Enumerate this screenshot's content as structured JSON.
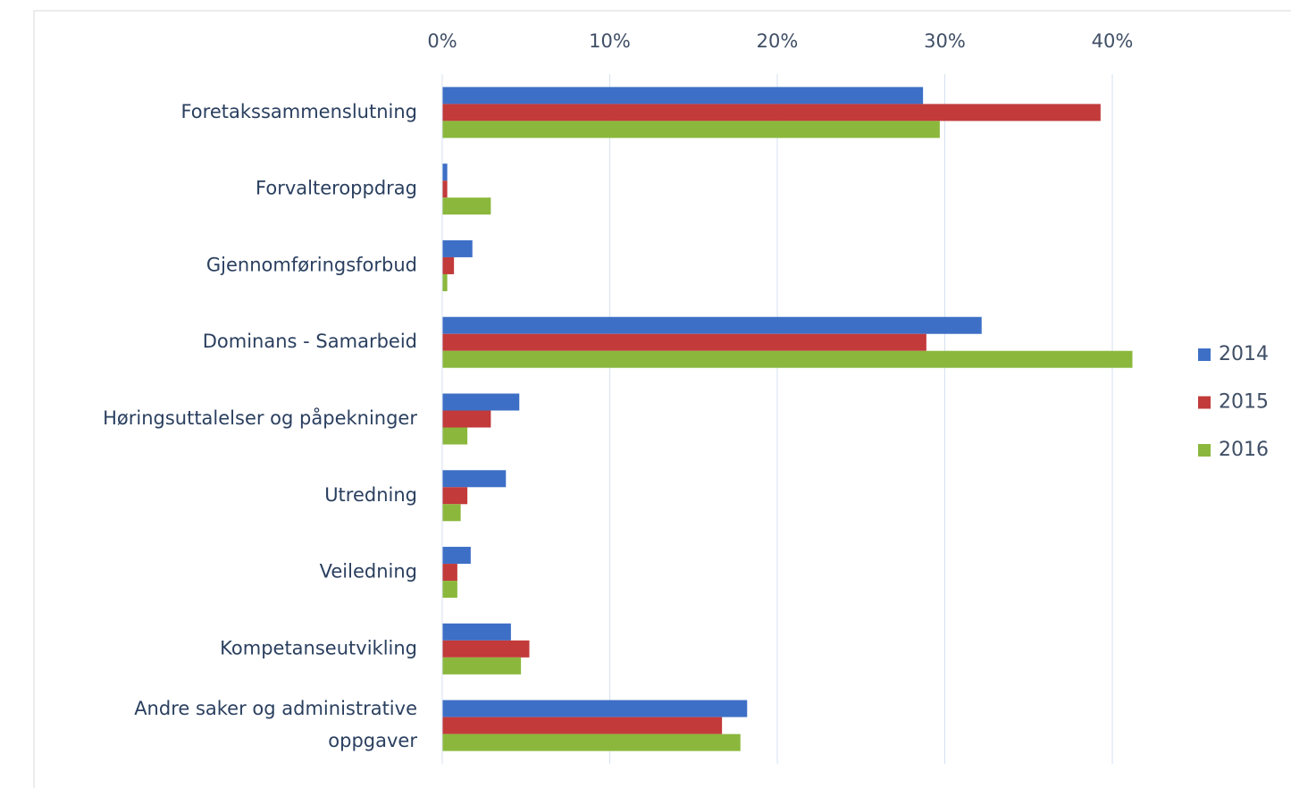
{
  "chart_data": {
    "type": "bar",
    "orientation": "horizontal",
    "categories": [
      "Foretakssammenslutning",
      "Forvalteroppdrag",
      "Gjennomføringsforbud",
      "Dominans - Samarbeid",
      "Høringsuttalelser og påpekninger",
      "Utredning",
      "Veiledning",
      "Kompetanseutvikling",
      "Andre saker og administrative oppgaver"
    ],
    "series": [
      {
        "name": "2014",
        "color": "#3d6fc6",
        "values": [
          28.7,
          0.3,
          1.8,
          32.2,
          4.6,
          3.8,
          1.7,
          4.1,
          18.2
        ]
      },
      {
        "name": "2015",
        "color": "#c23a3a",
        "values": [
          39.3,
          0.3,
          0.7,
          28.9,
          2.9,
          1.5,
          0.9,
          5.2,
          16.7
        ]
      },
      {
        "name": "2016",
        "color": "#8bb83c",
        "values": [
          29.7,
          2.9,
          0.3,
          41.2,
          1.5,
          1.1,
          0.9,
          4.7,
          17.8
        ]
      }
    ],
    "xlim": [
      0,
      44
    ],
    "xticks": [
      {
        "value": 0,
        "label": "0%"
      },
      {
        "value": 10,
        "label": "10%"
      },
      {
        "value": 20,
        "label": "20%"
      },
      {
        "value": 30,
        "label": "30%"
      },
      {
        "value": 40,
        "label": "40%"
      }
    ],
    "grid": true,
    "legend": "right"
  }
}
